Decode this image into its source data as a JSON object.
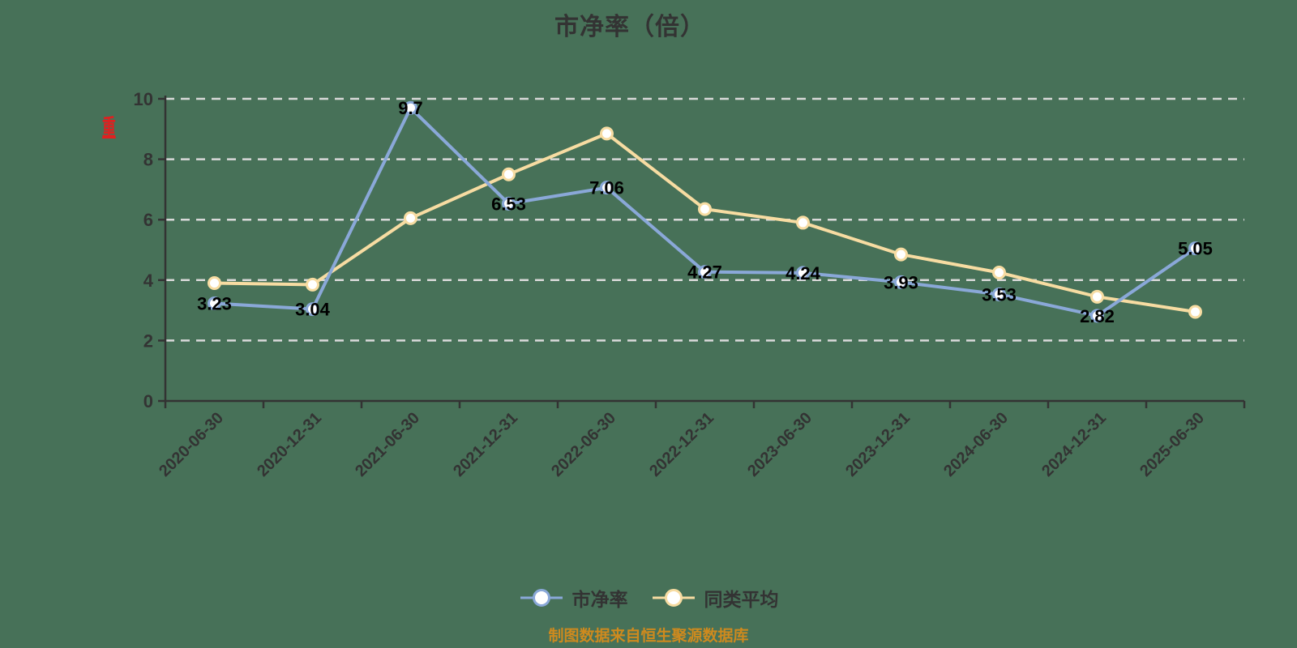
{
  "title": "市净率（倍）",
  "watermark": "重",
  "source_note": "制图数据来自恒生聚源数据库",
  "colors": {
    "background": "#477158",
    "pbr_line": "#8AA8D8",
    "average_line": "#F7DCA2",
    "axis": "#333333",
    "gridline": "#D9D9D9",
    "data_label": "#000000",
    "tick_label": "#333333",
    "source_note": "#CE8A1E",
    "watermark": "#E02020"
  },
  "legend": {
    "items": [
      {
        "label": "市净率",
        "color": "#8AA8D8"
      },
      {
        "label": "同类平均",
        "color": "#F7DCA2"
      }
    ]
  },
  "chart_data": {
    "type": "line",
    "title": "市净率（倍）",
    "categories": [
      "2020-06-30",
      "2020-12-31",
      "2021-06-30",
      "2021-12-31",
      "2022-06-30",
      "2022-12-31",
      "2023-06-30",
      "2023-12-31",
      "2024-06-30",
      "2024-12-31",
      "2025-06-30"
    ],
    "series": [
      {
        "name": "市净率",
        "color": "#8AA8D8",
        "values": [
          3.23,
          3.04,
          9.7,
          6.53,
          7.06,
          4.27,
          4.24,
          3.93,
          3.53,
          2.82,
          5.05
        ],
        "labels": [
          "3.23",
          "3.04",
          "9.7",
          "6.53",
          "7.06",
          "4.27",
          "4.24",
          "3.93",
          "3.53",
          "2.82",
          "5.05"
        ],
        "show_labels": true
      },
      {
        "name": "同类平均",
        "color": "#F7DCA2",
        "values": [
          3.9,
          3.85,
          6.05,
          7.5,
          8.85,
          6.35,
          5.9,
          4.85,
          4.25,
          3.45,
          2.95
        ],
        "labels": [],
        "show_labels": false
      }
    ],
    "xlabel": "",
    "ylabel": "",
    "ylim": [
      0,
      10
    ],
    "yticks": [
      0,
      2,
      4,
      6,
      8,
      10
    ],
    "grid": "horizontal-dashed",
    "legend_position": "bottom",
    "x_label_rotation": 45
  }
}
